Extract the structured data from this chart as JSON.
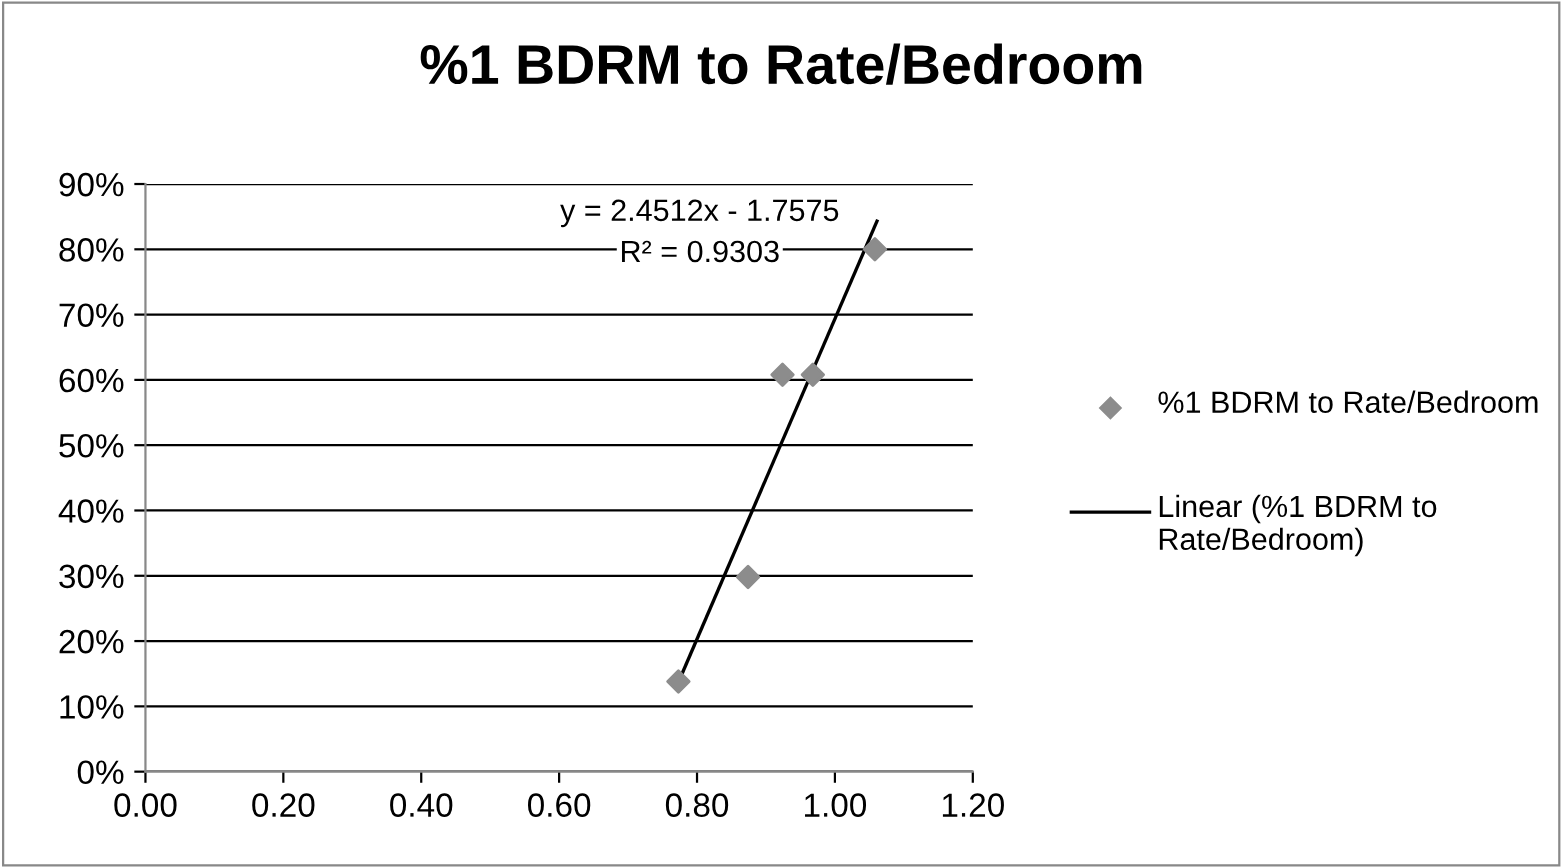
{
  "chart_data": {
    "type": "scatter",
    "title": "%1 BDRM to Rate/Bedroom",
    "series": [
      {
        "name": "%1 BDRM to Rate/Bedroom",
        "color": "#8c8c8c",
        "marker": "diamond",
        "x": [
          0.773,
          0.874,
          0.924,
          0.968,
          1.058
        ],
        "values": [
          0.138,
          0.298,
          0.608,
          0.608,
          0.8
        ]
      },
      {
        "name": "Linear (%1 BDRM to Rate/Bedroom)",
        "type": "line",
        "color": "#000000",
        "marker": "none",
        "line_style": "solid",
        "x": [
          0.773,
          1.061
        ],
        "values": [
          0.137,
          0.843
        ]
      }
    ],
    "annotations": [
      "y = 2.4512x - 1.7575",
      "R² = 0.9303"
    ],
    "xlim": [
      0,
      1.2
    ],
    "xticks": [
      {
        "value": 0,
        "label": "0.00"
      },
      {
        "value": 0.2,
        "label": "0.20"
      },
      {
        "value": 0.4,
        "label": "0.40"
      },
      {
        "value": 0.6,
        "label": "0.60"
      },
      {
        "value": 0.8,
        "label": "0.80"
      },
      {
        "value": 1.0,
        "label": "1.00"
      },
      {
        "value": 1.2,
        "label": "1.20"
      }
    ],
    "ylim": [
      0,
      0.9
    ],
    "yticks": [
      {
        "value": 0,
        "label": "0%"
      },
      {
        "value": 0.1,
        "label": "10%"
      },
      {
        "value": 0.2,
        "label": "20%"
      },
      {
        "value": 0.3,
        "label": "30%"
      },
      {
        "value": 0.4,
        "label": "40%"
      },
      {
        "value": 0.5,
        "label": "50%"
      },
      {
        "value": 0.6,
        "label": "60%"
      },
      {
        "value": 0.7,
        "label": "70%"
      },
      {
        "value": 0.8,
        "label": "80%"
      },
      {
        "value": 0.9,
        "label": "90%"
      }
    ],
    "grid": "y",
    "legend": "right"
  }
}
